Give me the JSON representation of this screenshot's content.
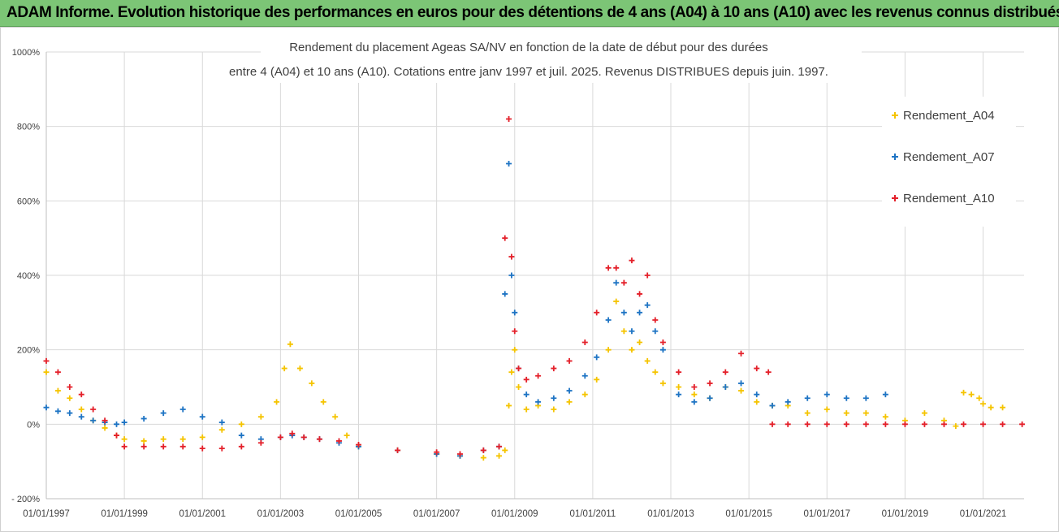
{
  "header": {
    "banner_title": "ADAM Informe. Evolution historique des performances en euros pour des détentions de 4 ans (A04) à 10 ans (A10) avec les revenus connus distribués"
  },
  "chart_data": {
    "type": "scatter",
    "title_line1": "Rendement du placement Ageas SA/NV en fonction de la date de début pour des durées",
    "title_line2": "entre 4 (A04) et 10 ans (A10).  Cotations entre janv 1997 et juil. 2025. Revenus DISTRIBUES depuis juin. 1997.",
    "y_ticks": [
      "1000%",
      "800%",
      "600%",
      "400%",
      "200%",
      "0%",
      "- 200%"
    ],
    "y_tick_values": [
      1000,
      800,
      600,
      400,
      200,
      0,
      -200
    ],
    "ylim": [
      -200,
      1000
    ],
    "x_ticks": [
      "01/01/1997",
      "01/01/1999",
      "01/01/2001",
      "01/01/2003",
      "01/01/2005",
      "01/01/2007",
      "01/01/2009",
      "01/01/2011",
      "01/01/2013",
      "01/01/2015",
      "01/01/2017",
      "01/01/2019",
      "01/01/2021"
    ],
    "x_tick_years": [
      1997,
      1999,
      2001,
      2003,
      2005,
      2007,
      2009,
      2011,
      2013,
      2015,
      2017,
      2019,
      2021
    ],
    "xlim": [
      1997,
      2022.05
    ],
    "grid": true,
    "legend_position": "right",
    "series": [
      {
        "name": "Rendement_A04",
        "color": "#f5c400",
        "x": [
          1997.0,
          1997.3,
          1997.6,
          1997.9,
          1998.2,
          1998.5,
          1998.8,
          1999.0,
          1999.5,
          2000.0,
          2000.5,
          2001.0,
          2001.5,
          2002.0,
          2002.5,
          2002.9,
          2003.1,
          2003.25,
          2003.5,
          2003.8,
          2004.1,
          2004.4,
          2004.7,
          2005.0,
          2006.0,
          2007.0,
          2007.6,
          2008.2,
          2008.6,
          2008.75,
          2008.85,
          2008.92,
          2009.0,
          2009.1,
          2009.3,
          2009.6,
          2010.0,
          2010.4,
          2010.8,
          2011.1,
          2011.4,
          2011.6,
          2011.8,
          2012.0,
          2012.2,
          2012.4,
          2012.6,
          2012.8,
          2013.2,
          2013.6,
          2014.0,
          2014.4,
          2014.8,
          2015.2,
          2015.6,
          2016.0,
          2016.5,
          2017.0,
          2017.5,
          2018.0,
          2018.5,
          2019.0,
          2019.5,
          2020.0,
          2020.3,
          2020.5,
          2020.7,
          2020.9,
          2021.0,
          2021.2,
          2021.5
        ],
        "values": [
          140,
          90,
          70,
          40,
          10,
          -10,
          -30,
          -40,
          -45,
          -40,
          -40,
          -35,
          -15,
          0,
          20,
          60,
          150,
          215,
          150,
          110,
          60,
          20,
          -30,
          -60,
          -70,
          -80,
          -85,
          -90,
          -85,
          -70,
          50,
          140,
          200,
          100,
          40,
          50,
          40,
          60,
          80,
          120,
          200,
          330,
          250,
          200,
          220,
          170,
          140,
          110,
          100,
          80,
          70,
          100,
          90,
          60,
          50,
          50,
          30,
          40,
          30,
          30,
          20,
          10,
          30,
          10,
          -5,
          85,
          80,
          70,
          55,
          45,
          45
        ]
      },
      {
        "name": "Rendement_A07",
        "color": "#1e74c4",
        "x": [
          1997.0,
          1997.3,
          1997.6,
          1997.9,
          1998.2,
          1998.5,
          1998.8,
          1999.0,
          1999.5,
          2000.0,
          2000.5,
          2001.0,
          2001.5,
          2002.0,
          2002.5,
          2003.0,
          2003.3,
          2003.6,
          2004.0,
          2004.5,
          2005.0,
          2006.0,
          2007.0,
          2007.6,
          2008.2,
          2008.6,
          2008.75,
          2008.85,
          2008.92,
          2009.0,
          2009.1,
          2009.3,
          2009.6,
          2010.0,
          2010.4,
          2010.8,
          2011.1,
          2011.4,
          2011.6,
          2011.8,
          2012.0,
          2012.2,
          2012.4,
          2012.6,
          2012.8,
          2013.2,
          2013.6,
          2014.0,
          2014.4,
          2014.8,
          2015.2,
          2015.6,
          2016.0,
          2016.5,
          2017.0,
          2017.5,
          2018.0,
          2018.5
        ],
        "values": [
          45,
          35,
          30,
          20,
          10,
          5,
          0,
          5,
          15,
          30,
          40,
          20,
          5,
          -30,
          -40,
          -35,
          -30,
          -35,
          -40,
          -50,
          -60,
          -70,
          -80,
          -85,
          -70,
          -60,
          350,
          700,
          400,
          300,
          150,
          80,
          60,
          70,
          90,
          130,
          180,
          280,
          380,
          300,
          250,
          300,
          320,
          250,
          200,
          80,
          60,
          70,
          100,
          110,
          80,
          50,
          60,
          70,
          80,
          70,
          70,
          80
        ]
      },
      {
        "name": "Rendement_A10",
        "color": "#e4202a",
        "x": [
          1997.0,
          1997.3,
          1997.6,
          1997.9,
          1998.2,
          1998.5,
          1998.8,
          1999.0,
          1999.5,
          2000.0,
          2000.5,
          2001.0,
          2001.5,
          2002.0,
          2002.5,
          2003.0,
          2003.3,
          2003.6,
          2004.0,
          2004.5,
          2005.0,
          2006.0,
          2007.0,
          2007.6,
          2008.2,
          2008.6,
          2008.75,
          2008.85,
          2008.92,
          2009.0,
          2009.1,
          2009.3,
          2009.6,
          2010.0,
          2010.4,
          2010.8,
          2011.1,
          2011.4,
          2011.6,
          2011.8,
          2012.0,
          2012.2,
          2012.4,
          2012.6,
          2012.8,
          2013.2,
          2013.6,
          2014.0,
          2014.4,
          2014.8,
          2015.2,
          2015.5,
          2015.6,
          2016.0,
          2016.5,
          2017.0,
          2017.5,
          2018.0,
          2018.5,
          2019.0,
          2019.5,
          2020.0,
          2020.5,
          2021.0,
          2021.5,
          2022.0
        ],
        "values": [
          170,
          140,
          100,
          80,
          40,
          10,
          -30,
          -60,
          -60,
          -60,
          -60,
          -65,
          -65,
          -60,
          -50,
          -35,
          -25,
          -35,
          -40,
          -45,
          -55,
          -70,
          -75,
          -80,
          -70,
          -60,
          500,
          820,
          450,
          250,
          150,
          120,
          130,
          150,
          170,
          220,
          300,
          420,
          420,
          380,
          440,
          350,
          400,
          280,
          220,
          140,
          100,
          110,
          140,
          190,
          150,
          140,
          0,
          0,
          0,
          0,
          0,
          0,
          0,
          0,
          0,
          0,
          0,
          0,
          0,
          0
        ]
      }
    ]
  }
}
